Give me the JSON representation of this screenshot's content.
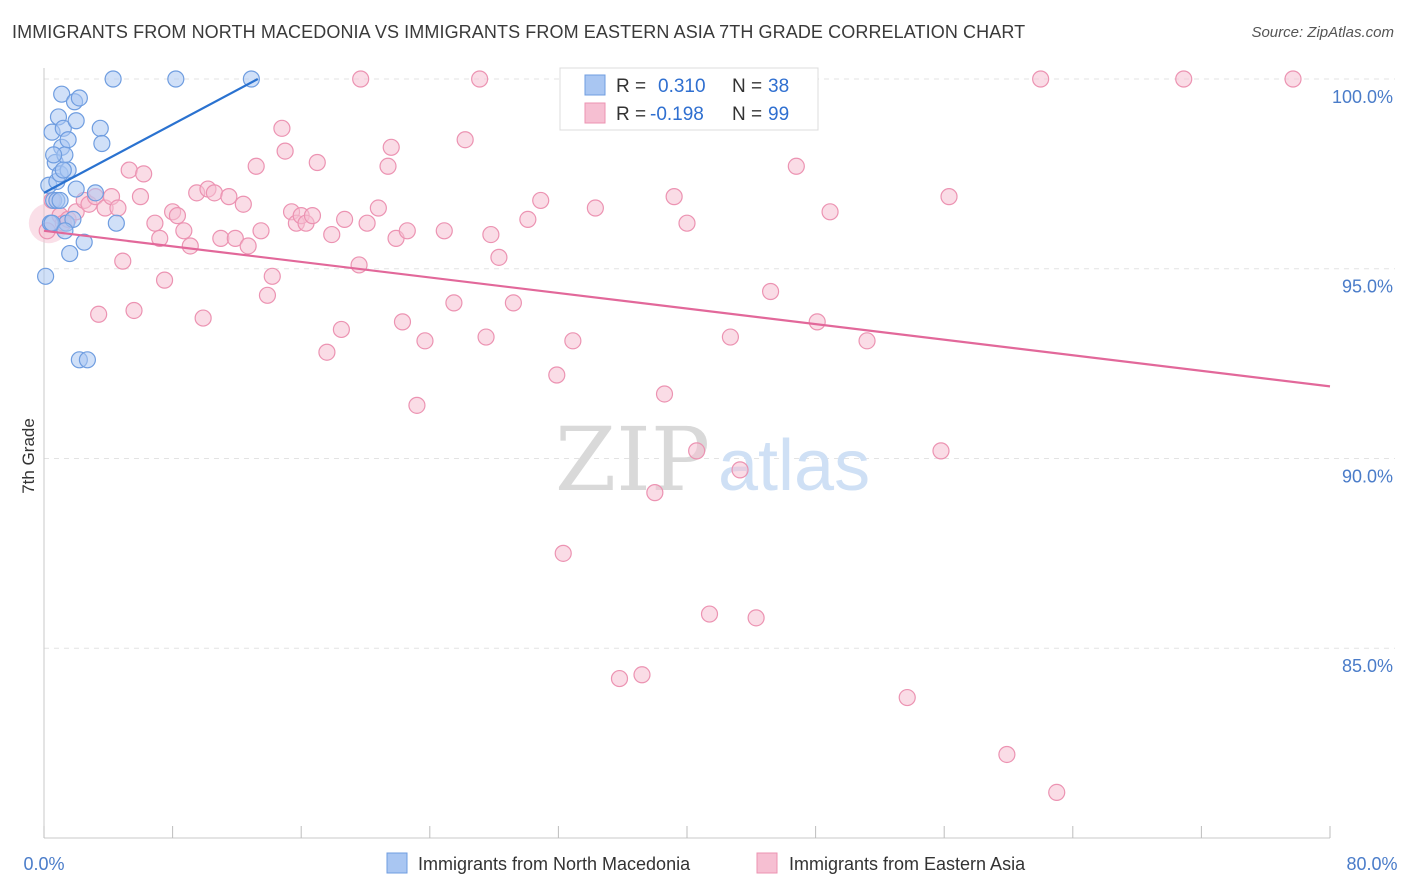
{
  "header": {
    "title": "IMMIGRANTS FROM NORTH MACEDONIA VS IMMIGRANTS FROM EASTERN ASIA 7TH GRADE CORRELATION CHART",
    "source": "Source: ZipAtlas.com"
  },
  "watermark": {
    "zip": "ZIP",
    "atlas": "atlas"
  },
  "colors": {
    "blue_fill": "#a9c6f2",
    "blue_stroke": "#6f9de0",
    "blue_line": "#2a72d0",
    "pink_fill": "#f6bfd2",
    "pink_stroke": "#ec93b2",
    "pink_line": "#e2689a",
    "grid": "#e3e3e3",
    "tick_text": "#4a7cc9"
  },
  "legend": {
    "rows": [
      {
        "r_label": "R =",
        "r_value": "0.310",
        "n_label": "N =",
        "n_value": "38"
      },
      {
        "r_label": "R =",
        "r_value": "-0.198",
        "n_label": "N =",
        "n_value": "99"
      }
    ]
  },
  "chart_data": {
    "type": "scatter",
    "title": "IMMIGRANTS FROM NORTH MACEDONIA VS IMMIGRANTS FROM EASTERN ASIA 7TH GRADE CORRELATION CHART",
    "xlabel": "",
    "ylabel": "7th Grade",
    "xlim": [
      0,
      80
    ],
    "ylim": [
      80.5,
      100.5
    ],
    "x_tick_labels": [
      "0.0%",
      "80.0%"
    ],
    "y_ticks": [
      85,
      90,
      95,
      100
    ],
    "y_tick_labels": [
      "85.0%",
      "90.0%",
      "95.0%",
      "100.0%"
    ],
    "legend_position": "top-center",
    "series": [
      {
        "name": "Immigrants from North Macedonia",
        "color": "blue",
        "R": 0.31,
        "N": 38,
        "trend": {
          "x": [
            0,
            13.3
          ],
          "y": [
            97.0,
            100.0
          ]
        },
        "points": [
          [
            0.1,
            94.8
          ],
          [
            0.3,
            97.2
          ],
          [
            0.4,
            96.2
          ],
          [
            0.5,
            98.6
          ],
          [
            0.6,
            96.8
          ],
          [
            0.7,
            97.8
          ],
          [
            0.8,
            96.8
          ],
          [
            0.8,
            97.3
          ],
          [
            0.9,
            99.0
          ],
          [
            1.0,
            96.8
          ],
          [
            1.0,
            97.5
          ],
          [
            1.1,
            99.6
          ],
          [
            1.1,
            98.2
          ],
          [
            1.2,
            98.7
          ],
          [
            1.3,
            98.0
          ],
          [
            1.4,
            96.2
          ],
          [
            1.5,
            98.4
          ],
          [
            1.5,
            97.6
          ],
          [
            1.6,
            95.4
          ],
          [
            1.8,
            96.3
          ],
          [
            1.9,
            99.4
          ],
          [
            2.0,
            98.9
          ],
          [
            2.0,
            97.1
          ],
          [
            2.2,
            99.5
          ],
          [
            2.2,
            92.6
          ],
          [
            2.5,
            95.7
          ],
          [
            2.7,
            92.6
          ],
          [
            3.2,
            97.0
          ],
          [
            3.5,
            98.7
          ],
          [
            3.6,
            98.3
          ],
          [
            4.5,
            96.2
          ],
          [
            4.3,
            100.0
          ],
          [
            8.2,
            100.0
          ],
          [
            12.9,
            100.0
          ],
          [
            0.5,
            96.2
          ],
          [
            1.3,
            96.0
          ],
          [
            0.6,
            98.0
          ],
          [
            1.2,
            97.6
          ]
        ]
      },
      {
        "name": "Immigrants from Eastern Asia",
        "color": "pink",
        "R": -0.198,
        "N": 99,
        "trend": {
          "x": [
            0,
            80
          ],
          "y": [
            96.0,
            91.9
          ]
        },
        "points": [
          [
            0.2,
            96.0
          ],
          [
            0.5,
            96.8
          ],
          [
            1.0,
            96.4
          ],
          [
            1.2,
            96.2
          ],
          [
            1.5,
            96.3
          ],
          [
            2.0,
            96.5
          ],
          [
            2.5,
            96.8
          ],
          [
            2.8,
            96.7
          ],
          [
            3.2,
            96.9
          ],
          [
            3.4,
            93.8
          ],
          [
            3.8,
            96.6
          ],
          [
            4.2,
            96.9
          ],
          [
            4.6,
            96.6
          ],
          [
            4.9,
            95.2
          ],
          [
            5.3,
            97.6
          ],
          [
            5.6,
            93.9
          ],
          [
            6.0,
            96.9
          ],
          [
            6.2,
            97.5
          ],
          [
            6.9,
            96.2
          ],
          [
            7.2,
            95.8
          ],
          [
            7.5,
            94.7
          ],
          [
            8.0,
            96.5
          ],
          [
            8.3,
            96.4
          ],
          [
            8.7,
            96.0
          ],
          [
            9.1,
            95.6
          ],
          [
            9.5,
            97.0
          ],
          [
            9.9,
            93.7
          ],
          [
            10.2,
            97.1
          ],
          [
            10.6,
            97.0
          ],
          [
            11.0,
            95.8
          ],
          [
            11.5,
            96.9
          ],
          [
            11.9,
            95.8
          ],
          [
            12.4,
            96.7
          ],
          [
            12.7,
            95.6
          ],
          [
            13.2,
            97.7
          ],
          [
            13.5,
            96.0
          ],
          [
            13.9,
            94.3
          ],
          [
            14.2,
            94.8
          ],
          [
            14.8,
            98.7
          ],
          [
            15.0,
            98.1
          ],
          [
            15.4,
            96.5
          ],
          [
            15.7,
            96.2
          ],
          [
            16.0,
            96.4
          ],
          [
            16.3,
            96.2
          ],
          [
            16.7,
            96.4
          ],
          [
            17.0,
            97.8
          ],
          [
            17.6,
            92.8
          ],
          [
            17.9,
            95.9
          ],
          [
            18.5,
            93.4
          ],
          [
            18.7,
            96.3
          ],
          [
            19.6,
            95.1
          ],
          [
            19.7,
            100.0
          ],
          [
            20.1,
            96.2
          ],
          [
            20.8,
            96.6
          ],
          [
            21.4,
            97.7
          ],
          [
            21.6,
            98.2
          ],
          [
            21.9,
            95.8
          ],
          [
            22.3,
            93.6
          ],
          [
            22.6,
            96.0
          ],
          [
            23.2,
            91.4
          ],
          [
            23.7,
            93.1
          ],
          [
            24.9,
            96.0
          ],
          [
            25.5,
            94.1
          ],
          [
            26.2,
            98.4
          ],
          [
            27.1,
            100.0
          ],
          [
            27.5,
            93.2
          ],
          [
            27.8,
            95.9
          ],
          [
            28.3,
            95.3
          ],
          [
            29.2,
            94.1
          ],
          [
            30.1,
            96.3
          ],
          [
            30.9,
            96.8
          ],
          [
            31.9,
            92.2
          ],
          [
            32.3,
            87.5
          ],
          [
            32.9,
            93.1
          ],
          [
            34.3,
            96.6
          ],
          [
            35.8,
            84.2
          ],
          [
            37.2,
            84.3
          ],
          [
            38.0,
            89.1
          ],
          [
            38.6,
            91.7
          ],
          [
            39.2,
            96.9
          ],
          [
            40.0,
            96.2
          ],
          [
            40.6,
            90.2
          ],
          [
            41.4,
            85.9
          ],
          [
            42.7,
            93.2
          ],
          [
            43.3,
            89.7
          ],
          [
            44.3,
            85.8
          ],
          [
            45.2,
            94.4
          ],
          [
            46.8,
            97.7
          ],
          [
            48.1,
            93.6
          ],
          [
            48.9,
            96.5
          ],
          [
            51.2,
            93.1
          ],
          [
            53.7,
            83.7
          ],
          [
            55.8,
            90.2
          ],
          [
            56.3,
            96.9
          ],
          [
            59.9,
            82.2
          ],
          [
            62.0,
            100.0
          ],
          [
            70.9,
            100.0
          ],
          [
            77.7,
            100.0
          ],
          [
            63.0,
            81.2
          ]
        ]
      }
    ]
  },
  "bottom_legend": {
    "items": [
      {
        "label": "Immigrants from North Macedonia"
      },
      {
        "label": "Immigrants from Eastern Asia"
      }
    ]
  }
}
